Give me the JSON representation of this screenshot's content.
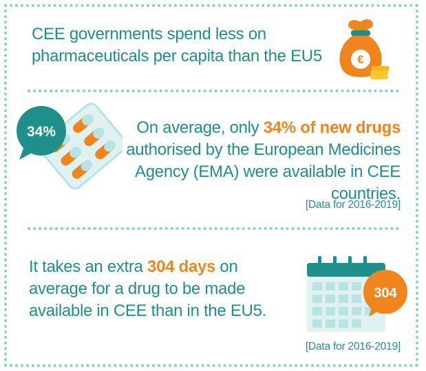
{
  "section1": {
    "line1": "CEE governments spend less on",
    "line2": "pharmaceuticals per capita than the EU5",
    "icon": "money-bag-euro-icon",
    "bag_symbol": "€"
  },
  "section2": {
    "badge": "34%",
    "line1_prefix": "On average, only ",
    "line1_highlight": "34% of new drugs",
    "line2": "authorised by the European Medicines",
    "line3": "Agency (EMA) were available in CEE countries.",
    "note": "[Data for 2016-2019]",
    "icon": "pill-blister-pack-icon"
  },
  "section3": {
    "line1_prefix": "It takes an extra ",
    "line1_highlight": "304 days",
    "line1_suffix": " on",
    "line2": "average for a drug to be made",
    "line3": "available in CEE than in the EU5.",
    "badge": "304",
    "note": "[Data for 2016-2019]",
    "icon": "calendar-icon"
  },
  "colors": {
    "teal": "#1f8f8c",
    "orange": "#f0851e",
    "dotted_border": "#7fd3c8",
    "light_teal": "#b8e3e3",
    "gold": "#f9c531"
  }
}
